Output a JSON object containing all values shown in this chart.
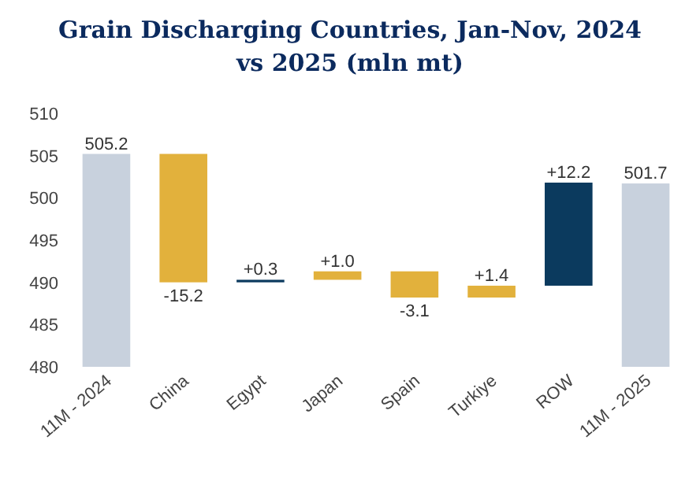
{
  "chart_data": {
    "type": "bar",
    "title": "Grain Discharging Countries, Jan-Nov, 2024 vs 2025 (mln mt)",
    "categories": [
      "11M - 2024",
      "China",
      "Egypt",
      "Japan",
      "Spain",
      "Turkiye",
      "ROW",
      "11M - 2025"
    ],
    "values": [
      25.2,
      -15.2,
      0.3,
      1.0,
      -3.1,
      1.4,
      12.2,
      21.7
    ],
    "base": [
      480,
      505.2,
      490,
      490.3,
      491.3,
      488.2,
      489.6,
      480
    ],
    "colors": [
      "#c8d1dd",
      "#e2b13c",
      "#0b3a5e",
      "#e2b13c",
      "#e2b13c",
      "#e2b13c",
      "#0b3a5e",
      "#c8d1dd"
    ],
    "value_labels": [
      "505.2",
      "-15.2",
      "+0.3",
      "+1.0",
      "-3.1",
      "+1.4",
      "+12.2",
      "501.7"
    ],
    "ylim": [
      480,
      510
    ],
    "yticks": [
      480,
      485,
      490,
      495,
      500,
      505,
      510
    ],
    "grid": false
  }
}
